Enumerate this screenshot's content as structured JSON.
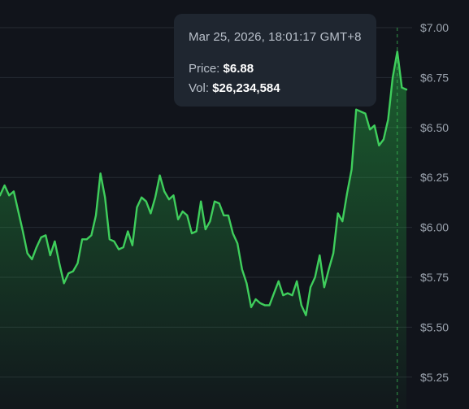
{
  "tooltip": {
    "date": "Mar 25, 2026, 18:01:17 GMT+8",
    "price_label": "Price:",
    "price_value": "$6.88",
    "vol_label": "Vol:",
    "vol_value": "$26,234,584"
  },
  "colors": {
    "background": "#11141b",
    "line": "#3fce5c",
    "grid": "#262b33",
    "axis_text": "#9ba3ae",
    "tooltip_bg": "#1f2630",
    "crosshair": "#3fce5c"
  },
  "chart_data": {
    "type": "area",
    "y_ticks": [
      "$7.00",
      "$6.75",
      "$6.50",
      "$6.25",
      "$6.00",
      "$5.75",
      "$5.50",
      "$5.25"
    ],
    "y_tick_values": [
      7.0,
      6.75,
      6.5,
      6.25,
      6.0,
      5.75,
      5.5,
      5.25
    ],
    "ylim": [
      5.1,
      7.1
    ],
    "grid": true,
    "highlight_index": 118,
    "values": [
      6.16,
      6.21,
      6.16,
      6.18,
      6.08,
      5.98,
      5.87,
      5.84,
      5.9,
      5.95,
      5.96,
      5.86,
      5.93,
      5.82,
      5.72,
      5.77,
      5.78,
      5.82,
      5.94,
      5.94,
      5.96,
      6.06,
      6.27,
      6.15,
      5.94,
      5.93,
      5.89,
      5.9,
      5.98,
      5.91,
      6.1,
      6.15,
      6.13,
      6.07,
      6.15,
      6.26,
      6.18,
      6.14,
      6.16,
      6.04,
      6.08,
      6.06,
      5.97,
      5.98,
      6.13,
      5.99,
      6.03,
      6.13,
      6.12,
      6.06,
      6.06,
      5.97,
      5.92,
      5.79,
      5.72,
      5.6,
      5.64,
      5.62,
      5.61,
      5.61,
      5.67,
      5.73,
      5.66,
      5.67,
      5.66,
      5.73,
      5.61,
      5.56,
      5.7,
      5.75,
      5.86,
      5.7,
      5.79,
      5.87,
      6.07,
      6.03,
      6.17,
      6.29,
      6.59,
      6.58,
      6.57,
      6.49,
      6.51,
      6.41,
      6.44,
      6.54,
      6.75,
      6.88,
      6.7,
      6.69
    ]
  }
}
